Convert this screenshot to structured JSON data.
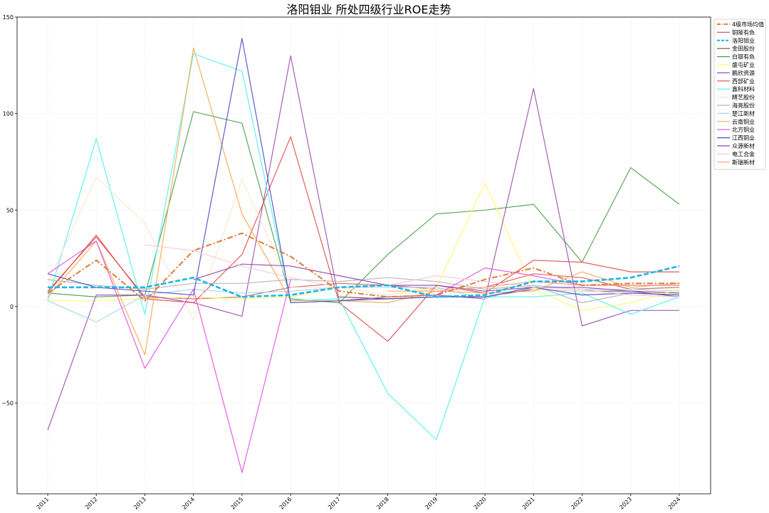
{
  "chart_data": {
    "type": "line",
    "title": "洛阳钼业 所处四级行业ROE走势",
    "xlabel": "",
    "ylabel": "",
    "x": [
      "2011",
      "2012",
      "2013",
      "2014",
      "2015",
      "2016",
      "2017",
      "2018",
      "2019",
      "2020",
      "2021",
      "2022",
      "2023",
      "2024"
    ],
    "ylim": [
      -97,
      150
    ],
    "yticks": [
      -50,
      0,
      50,
      100,
      150
    ],
    "grid": true,
    "legend_position": "top-right",
    "series": [
      {
        "name": "4级市场均值",
        "color": "#e07b39",
        "dash": "8,3,2,3",
        "width": 2,
        "opacity": 1,
        "values": [
          7,
          24,
          3,
          29,
          38,
          26,
          8,
          5,
          6,
          14,
          20,
          11,
          12,
          12
        ]
      },
      {
        "name": "铜陵有色",
        "color": "#cd5c5c",
        "dash": "",
        "width": 1.2,
        "opacity": 0.9,
        "values": [
          8,
          36,
          5,
          4,
          5,
          10,
          12,
          11,
          9,
          10,
          17,
          15,
          9,
          10
        ]
      },
      {
        "name": "洛阳钼业",
        "color": "#1ab7e6",
        "dash": "7,3",
        "width": 2.6,
        "opacity": 1,
        "values": [
          10,
          10,
          10,
          15,
          5,
          6,
          10,
          11,
          5,
          6,
          13,
          13,
          15,
          21
        ]
      },
      {
        "name": "金田股份",
        "color": "#6b4d4d",
        "dash": "",
        "width": 1.2,
        "opacity": 0.9,
        "values": [
          null,
          null,
          null,
          null,
          null,
          null,
          5,
          4,
          5,
          5,
          9,
          8,
          8,
          7
        ]
      },
      {
        "name": "白银有色",
        "color": "#4a9e4a",
        "dash": "",
        "width": 1.2,
        "opacity": 0.9,
        "values": [
          7,
          5,
          6,
          101,
          95,
          4,
          2,
          27,
          48,
          50,
          53,
          23,
          72,
          53
        ]
      },
      {
        "name": "盛屯矿业",
        "color": "#ffff66",
        "dash": "",
        "width": 1.2,
        "opacity": 0.9,
        "values": [
          3,
          3,
          4,
          5,
          4,
          5,
          10,
          6,
          10,
          64,
          9,
          -2,
          2,
          9
        ]
      },
      {
        "name": "鹏欣资源",
        "color": "#9b4fb0",
        "dash": "",
        "width": 1.2,
        "opacity": 0.9,
        "values": [
          -64,
          6,
          6,
          2,
          -5,
          130,
          3,
          5,
          6,
          4,
          113,
          -10,
          -2,
          -2
        ]
      },
      {
        "name": "西部矿业",
        "color": "#e04a4a",
        "dash": "",
        "width": 1.2,
        "opacity": 0.9,
        "values": [
          7,
          37,
          4,
          2,
          27,
          88,
          2,
          -18,
          11,
          7,
          24,
          23,
          18,
          18
        ]
      },
      {
        "name": "鑫科材料",
        "color": "#66f2f2",
        "dash": "",
        "width": 1.4,
        "opacity": 0.9,
        "values": [
          3,
          87,
          -4,
          131,
          122,
          3,
          4,
          -45,
          -69,
          5,
          5,
          7,
          -4,
          5
        ]
      },
      {
        "name": "精艺股份",
        "color": "#fbe6cf",
        "dash": "",
        "width": 1.2,
        "opacity": 0.9,
        "values": [
          12,
          67,
          43,
          -7,
          66,
          10,
          10,
          6,
          9,
          10,
          9,
          8,
          7,
          6
        ]
      },
      {
        "name": "海亮股份",
        "color": "#b3b3b3",
        "dash": "",
        "width": 1.2,
        "opacity": 0.9,
        "values": [
          14,
          11,
          9,
          12,
          12,
          14,
          13,
          15,
          13,
          9,
          11,
          2,
          7,
          6
        ]
      },
      {
        "name": "楚江新材",
        "color": "#a8d4f0",
        "dash": "",
        "width": 1.2,
        "opacity": 0.9,
        "values": [
          3,
          -8,
          6,
          9,
          7,
          8,
          10,
          10,
          10,
          4,
          11,
          9,
          9,
          8
        ]
      },
      {
        "name": "云南铜业",
        "color": "#f5a94a",
        "dash": "",
        "width": 1.2,
        "opacity": 0.9,
        "values": [
          5,
          34,
          -25,
          134,
          48,
          3,
          3,
          2,
          8,
          7,
          8,
          18,
          10,
          12
        ]
      },
      {
        "name": "北方铜业",
        "color": "#e64ce6",
        "dash": "",
        "width": 1.2,
        "opacity": 0.9,
        "values": [
          17,
          34,
          -32,
          9,
          -86,
          14,
          null,
          null,
          6,
          20,
          16,
          11,
          11,
          11
        ]
      },
      {
        "name": "江西铜业",
        "color": "#4d4dc0",
        "dash": "",
        "width": 1.2,
        "opacity": 0.9,
        "values": [
          17,
          10,
          8,
          6,
          139,
          2,
          3,
          4,
          5,
          5,
          10,
          6,
          7,
          6
        ]
      },
      {
        "name": "众源新材",
        "color": "#8e44ad",
        "dash": "",
        "width": 1.2,
        "opacity": 0.9,
        "values": [
          null,
          null,
          null,
          14,
          22,
          21,
          16,
          11,
          11,
          8,
          10,
          10,
          8,
          5
        ]
      },
      {
        "name": "电工合金",
        "color": "#f7c8d8",
        "dash": "",
        "width": 1.2,
        "opacity": 0.9,
        "values": [
          null,
          null,
          32,
          29,
          21,
          15,
          10,
          11,
          16,
          13,
          10,
          9,
          6,
          5
        ]
      },
      {
        "name": "斯瑞新材",
        "color": "#f4a07a",
        "dash": "",
        "width": 1.2,
        "opacity": 0.9,
        "values": [
          null,
          null,
          null,
          null,
          null,
          null,
          null,
          8,
          8,
          10,
          13,
          11,
          11,
          11
        ]
      }
    ]
  }
}
